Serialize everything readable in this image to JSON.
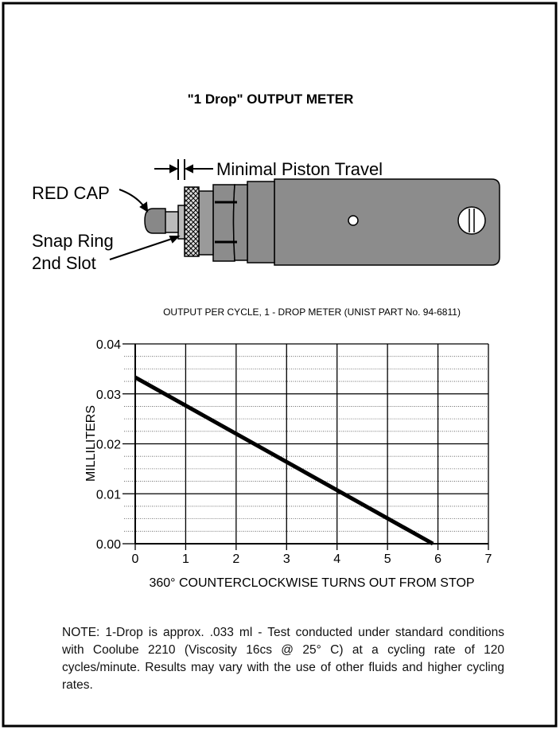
{
  "title": "\"1 Drop\" OUTPUT METER",
  "diagram": {
    "labels": [
      "RED CAP",
      "Snap Ring",
      "2nd Slot",
      "Minimal Piston Travel"
    ]
  },
  "chart_data": {
    "type": "line",
    "title": "OUTPUT PER CYCLE, 1 - DROP METER  (UNIST PART No. 94-6811)",
    "x_label": "360° COUNTERCLOCKWISE TURNS OUT FROM STOP",
    "y_label": "MILLILITERS",
    "x": [
      0,
      5.9
    ],
    "values": [
      0.0333,
      0
    ],
    "color": "#000000",
    "xlim": [
      0,
      7
    ],
    "xticks": [
      0,
      1,
      2,
      3,
      4,
      5,
      6,
      7
    ],
    "ylim": [
      0,
      0.04
    ],
    "yticks": [
      {
        "value": 0,
        "label": "0.00"
      },
      0.01,
      0.02,
      0.03,
      0.04
    ],
    "yminorticks": [
      0.0025,
      0.005,
      0.0075,
      0.0125,
      0.015,
      0.0175,
      0.0225,
      0.025,
      0.0275,
      0.0325,
      0.035,
      0.0375
    ],
    "grid": true
  },
  "note": "NOTE: 1-Drop is approx. .033 ml - Test conducted under standard conditions with Coolube 2210 (Viscosity 16cs @ 25° C) at a cycling rate of 120 cycles/minute. Results may vary with the use of other fluids and higher cycling rates."
}
